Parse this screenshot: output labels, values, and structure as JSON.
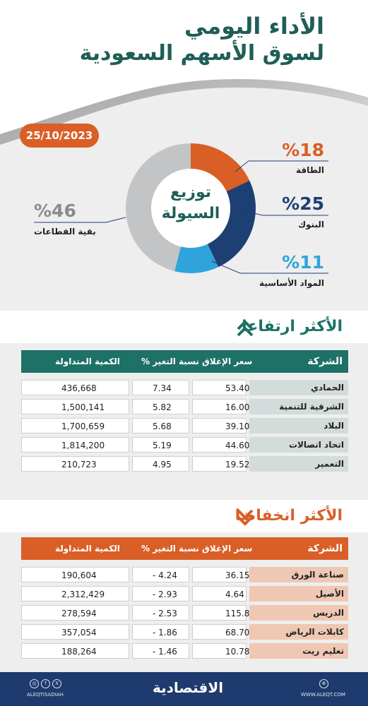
{
  "header": {
    "title_line1": "الأداء اليومي",
    "title_line2": "لسوق الأسهم السعودية",
    "date": "25/10/2023"
  },
  "donut": {
    "center_line1": "توزيع",
    "center_line2": "السيولة",
    "segments": [
      {
        "label": "الطاقة",
        "pct_text": "%18",
        "value": 18,
        "color": "#d95f27"
      },
      {
        "label": "البنوك",
        "pct_text": "%25",
        "value": 25,
        "color": "#1d3f73"
      },
      {
        "label": "المواد الأساسية",
        "pct_text": "%11",
        "value": 11,
        "color": "#2ea3dc"
      },
      {
        "label": "بقية القطاعات",
        "pct_text": "%46",
        "value": 46,
        "color": "#c3c4c6"
      }
    ]
  },
  "gainers": {
    "title": "الأكثر ارتفاعا",
    "header_color": "#1e7166",
    "name_bg": "#d4dcdb",
    "columns": [
      "الشركة",
      "سعر الإغلاق",
      "نسبة التغير %",
      "الكمية المتداولة"
    ],
    "rows": [
      {
        "name": "الحمادي",
        "close": "53.40",
        "change": "7.34",
        "qty": "436,668"
      },
      {
        "name": "الشرقية للتنمية",
        "close": "16.00",
        "change": "5.82",
        "qty": "1,500,141"
      },
      {
        "name": "البلاد",
        "close": "39.10",
        "change": "5.68",
        "qty": "1,700,659"
      },
      {
        "name": "اتحاد اتصالات",
        "close": "44.60",
        "change": "5.19",
        "qty": "1,814,200"
      },
      {
        "name": "التعمير",
        "close": "19.52",
        "change": "4.95",
        "qty": "210,723"
      }
    ]
  },
  "losers": {
    "title": "الأكثر انخفاضا",
    "header_color": "#d95f27",
    "name_bg": "#efc8b3",
    "columns": [
      "الشركة",
      "سعر الإغلاق",
      "نسبة التغير %",
      "الكمية المتداولة"
    ],
    "rows": [
      {
        "name": "صناعة الورق",
        "close": "36.15",
        "change": "- 4.24",
        "qty": "190,604"
      },
      {
        "name": "الأصيل",
        "close": "4.64",
        "change": "- 2.93",
        "qty": "2,312,429"
      },
      {
        "name": "الدريس",
        "close": "115.80",
        "change": "- 2.53",
        "qty": "278,594"
      },
      {
        "name": "كابلات الرياض",
        "close": "68.70",
        "change": "- 1.86",
        "qty": "357,054"
      },
      {
        "name": "تعليم ريت",
        "close": "10.78",
        "change": "- 1.46",
        "qty": "188,264"
      }
    ]
  },
  "footer": {
    "logo": "الاقتصادية",
    "handle": "ALEQTISADIAH",
    "website": "WWW.ALEQT.COM",
    "social_icons": [
      "instagram-icon",
      "facebook-icon",
      "x-icon"
    ],
    "web_icon": "globe-icon"
  }
}
